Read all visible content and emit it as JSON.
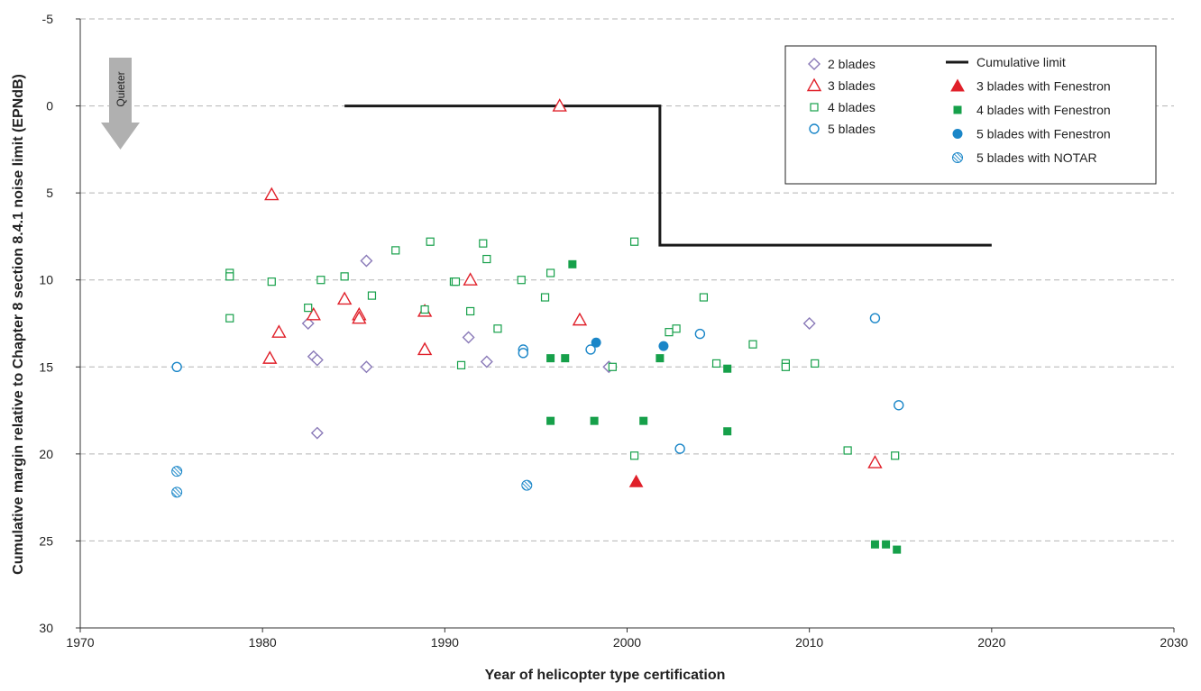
{
  "chart_data": {
    "type": "scatter",
    "xlabel": "Year of helicopter type certification",
    "ylabel": "Cumulative margin relative to Chapter 8 section 8.4.1 noise limit (EPNdB)",
    "xlim": [
      1970,
      2030
    ],
    "ylim": [
      -5,
      30
    ],
    "y_inverted": true,
    "x_ticks": [
      "1970",
      "1980",
      "1990",
      "2000",
      "2010",
      "2020",
      "2030"
    ],
    "y_ticks": [
      "-5",
      "0",
      "5",
      "10",
      "15",
      "20",
      "25",
      "30"
    ],
    "x_tick_values": [
      1970,
      1980,
      1990,
      2000,
      2010,
      2020,
      2030
    ],
    "y_tick_values": [
      -5,
      0,
      5,
      10,
      15,
      20,
      25,
      30
    ],
    "grid": "horizontal dashed",
    "legend_position": "top-right",
    "annotation": {
      "text": "Quieter",
      "direction": "up arrow"
    },
    "limit_line": {
      "name": "Cumulative limit",
      "points": [
        [
          1984.5,
          0
        ],
        [
          2001.8,
          0
        ],
        [
          2001.8,
          8
        ],
        [
          2020,
          8
        ]
      ]
    },
    "series": [
      {
        "name": "2 blades",
        "marker": "diamond-open",
        "color": "#8a7ab8",
        "points": [
          [
            1982.5,
            12.5
          ],
          [
            1982.8,
            14.4
          ],
          [
            1983.0,
            14.6
          ],
          [
            1983.0,
            18.8
          ],
          [
            1985.7,
            8.9
          ],
          [
            1985.7,
            15.0
          ],
          [
            1991.3,
            13.3
          ],
          [
            1992.3,
            14.7
          ],
          [
            1999.0,
            15.0
          ],
          [
            2010.0,
            12.5
          ]
        ]
      },
      {
        "name": "3 blades",
        "marker": "triangle-open",
        "color": "#e0202a",
        "points": [
          [
            1980.4,
            14.5
          ],
          [
            1980.5,
            5.1
          ],
          [
            1980.9,
            13.0
          ],
          [
            1982.8,
            12.0
          ],
          [
            1984.5,
            11.1
          ],
          [
            1985.3,
            12.0
          ],
          [
            1985.3,
            12.2
          ],
          [
            1988.9,
            11.8
          ],
          [
            1988.9,
            14.0
          ],
          [
            1991.4,
            10.0
          ],
          [
            1996.3,
            0.0
          ],
          [
            1997.4,
            12.3
          ],
          [
            2013.6,
            20.5
          ]
        ]
      },
      {
        "name": "4 blades",
        "marker": "square-open",
        "color": "#16a04a",
        "points": [
          [
            1978.2,
            9.6
          ],
          [
            1978.2,
            9.8
          ],
          [
            1978.2,
            12.2
          ],
          [
            1980.5,
            10.1
          ],
          [
            1982.5,
            11.6
          ],
          [
            1983.2,
            10.0
          ],
          [
            1984.5,
            9.8
          ],
          [
            1986.0,
            10.9
          ],
          [
            1987.3,
            8.3
          ],
          [
            1988.9,
            11.7
          ],
          [
            1989.2,
            7.8
          ],
          [
            1990.5,
            10.1
          ],
          [
            1990.6,
            10.1
          ],
          [
            1990.9,
            14.9
          ],
          [
            1991.4,
            11.8
          ],
          [
            1992.1,
            7.9
          ],
          [
            1992.3,
            8.8
          ],
          [
            1992.9,
            12.8
          ],
          [
            1994.2,
            10.0
          ],
          [
            1995.5,
            11.0
          ],
          [
            1995.8,
            9.6
          ],
          [
            1999.2,
            15.0
          ],
          [
            2000.4,
            7.8
          ],
          [
            2000.4,
            20.1
          ],
          [
            2002.3,
            13.0
          ],
          [
            2002.7,
            12.8
          ],
          [
            2004.2,
            11.0
          ],
          [
            2004.9,
            14.8
          ],
          [
            2006.9,
            13.7
          ],
          [
            2008.7,
            14.8
          ],
          [
            2008.7,
            15.0
          ],
          [
            2010.3,
            14.8
          ],
          [
            2012.1,
            19.8
          ],
          [
            2014.7,
            20.1
          ]
        ]
      },
      {
        "name": "5 blades",
        "marker": "circle-open",
        "color": "#1a86c8",
        "points": [
          [
            1975.3,
            15.0
          ],
          [
            1994.3,
            14.0
          ],
          [
            1994.3,
            14.2
          ],
          [
            1998.0,
            14.0
          ],
          [
            2002.9,
            19.7
          ],
          [
            2004.0,
            13.1
          ],
          [
            2013.6,
            12.2
          ],
          [
            2014.9,
            17.2
          ]
        ]
      },
      {
        "name": "3 blades with Fenestron",
        "marker": "triangle-filled",
        "color": "#e0202a",
        "points": [
          [
            2000.5,
            21.6
          ]
        ]
      },
      {
        "name": "4 blades with Fenestron",
        "marker": "square-filled",
        "color": "#16a04a",
        "points": [
          [
            1995.8,
            14.5
          ],
          [
            1995.8,
            18.1
          ],
          [
            1996.6,
            14.5
          ],
          [
            1997.0,
            9.1
          ],
          [
            1998.2,
            18.1
          ],
          [
            2000.9,
            18.1
          ],
          [
            2001.8,
            14.5
          ],
          [
            2005.5,
            15.1
          ],
          [
            2005.5,
            18.7
          ],
          [
            2013.6,
            25.2
          ],
          [
            2014.2,
            25.2
          ],
          [
            2014.8,
            25.5
          ]
        ]
      },
      {
        "name": "5 blades with Fenestron",
        "marker": "circle-filled",
        "color": "#1a86c8",
        "points": [
          [
            1998.3,
            13.6
          ],
          [
            2002.0,
            13.8
          ]
        ]
      },
      {
        "name": "5 blades with NOTAR",
        "marker": "circle-hatched",
        "color": "#1a86c8",
        "points": [
          [
            1975.3,
            21.0
          ],
          [
            1975.3,
            22.2
          ],
          [
            1994.5,
            21.8
          ]
        ]
      }
    ],
    "legend": {
      "left": [
        "2 blades",
        "3 blades",
        "4 blades",
        "5 blades"
      ],
      "right": [
        "Cumulative limit",
        "3 blades with Fenestron",
        "4 blades with Fenestron",
        "5 blades with Fenestron",
        "5 blades with NOTAR"
      ]
    }
  },
  "colors": {
    "grid": "#b4b4b4",
    "axis": "#333333",
    "limit": "#1a1a1a",
    "arrow": "#b0b0b0"
  }
}
